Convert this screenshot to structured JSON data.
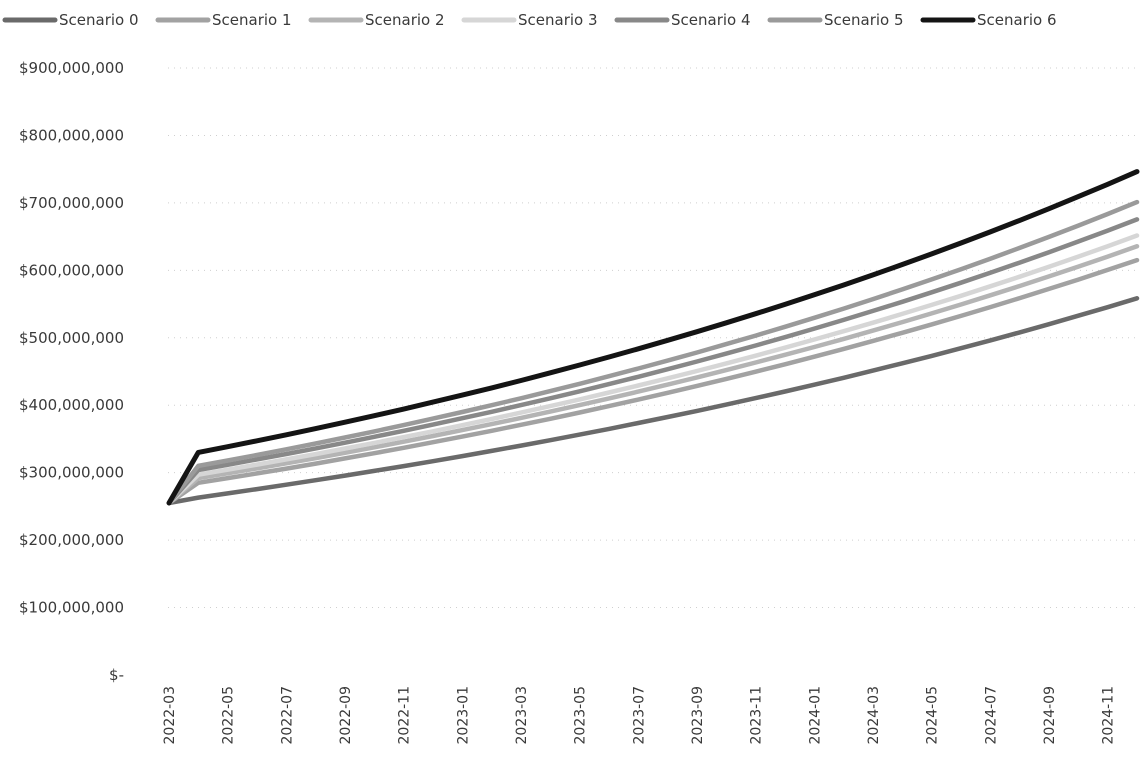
{
  "chart_data": {
    "type": "line",
    "title": "",
    "xlabel": "",
    "ylabel": "",
    "ylim": [
      0,
      900000000
    ],
    "grid": true,
    "grid_style": "dotted",
    "legend_position": "top",
    "y_ticks": [
      0,
      100000000,
      200000000,
      300000000,
      400000000,
      500000000,
      600000000,
      700000000,
      800000000,
      900000000
    ],
    "y_tick_labels": [
      "$-",
      "$100,000,000",
      "$200,000,000",
      "$300,000,000",
      "$400,000,000",
      "$500,000,000",
      "$600,000,000",
      "$700,000,000",
      "$800,000,000",
      "$900,000,000"
    ],
    "x_tick_labels": [
      "2022-03",
      "2022-05",
      "2022-07",
      "2022-09",
      "2022-11",
      "2023-01",
      "2023-03",
      "2023-05",
      "2023-07",
      "2023-09",
      "2023-11",
      "2024-01",
      "2024-03",
      "2024-05",
      "2024-07",
      "2024-09",
      "2024-11"
    ],
    "x": [
      "2022-03",
      "2022-04",
      "2022-05",
      "2022-06",
      "2022-07",
      "2022-08",
      "2022-09",
      "2022-10",
      "2022-11",
      "2022-12",
      "2023-01",
      "2023-02",
      "2023-03",
      "2023-04",
      "2023-05",
      "2023-06",
      "2023-07",
      "2023-08",
      "2023-09",
      "2023-10",
      "2023-11",
      "2023-12",
      "2024-01",
      "2024-02",
      "2024-03",
      "2024-04",
      "2024-05",
      "2024-06",
      "2024-07",
      "2024-08",
      "2024-09",
      "2024-10",
      "2024-11",
      "2024-12"
    ],
    "series": [
      {
        "name": "Scenario 0",
        "color": "#6a6a6a",
        "values": [
          255000000,
          263000000,
          269300000,
          275700000,
          282200000,
          288800000,
          295600000,
          302600000,
          309700000,
          317000000,
          324500000,
          332200000,
          340100000,
          348200000,
          356400000,
          364900000,
          373600000,
          382500000,
          391600000,
          400900000,
          410500000,
          420300000,
          430400000,
          440700000,
          451300000,
          462100000,
          473200000,
          484500000,
          496100000,
          508000000,
          520200000,
          532700000,
          545400000,
          558500000
        ]
      },
      {
        "name": "Scenario 1",
        "color": "#a2a2a2",
        "values": [
          255000000,
          285000000,
          291900000,
          298900000,
          306100000,
          313500000,
          321100000,
          328900000,
          336900000,
          345100000,
          353500000,
          362100000,
          370900000,
          379900000,
          389200000,
          398700000,
          408400000,
          418400000,
          428600000,
          439000000,
          449700000,
          460700000,
          472000000,
          483500000,
          495300000,
          507400000,
          519800000,
          532500000,
          545500000,
          558800000,
          572400000,
          586300000,
          600600000,
          615200000
        ]
      },
      {
        "name": "Scenario 2",
        "color": "#b4b4b4",
        "values": [
          255000000,
          292000000,
          299100000,
          306400000,
          313900000,
          321600000,
          329500000,
          337600000,
          345900000,
          354400000,
          363100000,
          372000000,
          381200000,
          390600000,
          400200000,
          410100000,
          420200000,
          430600000,
          441200000,
          452100000,
          463300000,
          474700000,
          486400000,
          498400000,
          510700000,
          523300000,
          536200000,
          549400000,
          563000000,
          576800000,
          591000000,
          605500000,
          620400000,
          635700000
        ]
      },
      {
        "name": "Scenario 3",
        "color": "#d6d6d6",
        "values": [
          255000000,
          297000000,
          304400000,
          312000000,
          319700000,
          327600000,
          335800000,
          344100000,
          352700000,
          361400000,
          370400000,
          379600000,
          389000000,
          398700000,
          408600000,
          418800000,
          429200000,
          439900000,
          450800000,
          462000000,
          473500000,
          485300000,
          497400000,
          509800000,
          522400000,
          535400000,
          548700000,
          562300000,
          576300000,
          590600000,
          605300000,
          620400000,
          635800000,
          651600000
        ]
      },
      {
        "name": "Scenario 4",
        "color": "#888888",
        "values": [
          255000000,
          304000000,
          311700000,
          319600000,
          327700000,
          336000000,
          344500000,
          353200000,
          362100000,
          371300000,
          380700000,
          390300000,
          400200000,
          410300000,
          420700000,
          431300000,
          442200000,
          453400000,
          464800000,
          476600000,
          488600000,
          500900000,
          513600000,
          526500000,
          539800000,
          553400000,
          567400000,
          581700000,
          596400000,
          611400000,
          626900000,
          642700000,
          658900000,
          675500000
        ]
      },
      {
        "name": "Scenario 5",
        "color": "#9a9a9a",
        "values": [
          255000000,
          310000000,
          318000000,
          326200000,
          334600000,
          343300000,
          352100000,
          361200000,
          370600000,
          380100000,
          389900000,
          400000000,
          410300000,
          420900000,
          431800000,
          443000000,
          454400000,
          466200000,
          478200000,
          490600000,
          503300000,
          516300000,
          529600000,
          543300000,
          557400000,
          571800000,
          586500000,
          601700000,
          617200000,
          633200000,
          649500000,
          666300000,
          683500000,
          701200000
        ]
      },
      {
        "name": "Scenario 6",
        "color": "#141414",
        "values": [
          255000000,
          330000000,
          338500000,
          347300000,
          356200000,
          365400000,
          374800000,
          384500000,
          394400000,
          404600000,
          415000000,
          425700000,
          436700000,
          448000000,
          459600000,
          471500000,
          483700000,
          496200000,
          509000000,
          522200000,
          535700000,
          549500000,
          563800000,
          578300000,
          593300000,
          608600000,
          624300000,
          640500000,
          657000000,
          674000000,
          691400000,
          709300000,
          727600000,
          746400000
        ]
      }
    ]
  }
}
